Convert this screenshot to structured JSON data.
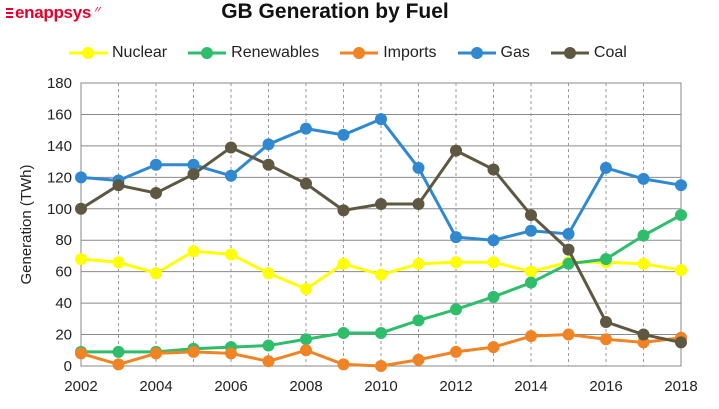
{
  "logo": {
    "text": "enappsys",
    "color": "#e4002b"
  },
  "chart_data": {
    "type": "line",
    "title": "GB Generation by Fuel",
    "xlabel": "",
    "ylabel": "Generation (TWh)",
    "ylim": [
      0,
      180
    ],
    "yticks": [
      0,
      20,
      40,
      60,
      80,
      100,
      120,
      140,
      160,
      180
    ],
    "xticks": [
      2002,
      2004,
      2006,
      2008,
      2010,
      2012,
      2014,
      2016,
      2018
    ],
    "grid": true,
    "legend_position": "top",
    "x": [
      2002,
      2003,
      2004,
      2005,
      2006,
      2007,
      2008,
      2009,
      2010,
      2011,
      2012,
      2013,
      2014,
      2015,
      2016,
      2017,
      2018
    ],
    "series": [
      {
        "name": "Nuclear",
        "color": "#ffff00",
        "values": [
          68,
          66,
          59,
          73,
          71,
          59,
          49,
          65,
          58,
          65,
          66,
          66,
          60,
          66,
          66,
          65,
          61
        ]
      },
      {
        "name": "Renewables",
        "color": "#2ebd6b",
        "values": [
          9,
          9,
          9,
          11,
          12,
          13,
          17,
          21,
          21,
          29,
          36,
          44,
          53,
          65,
          68,
          83,
          96
        ]
      },
      {
        "name": "Imports",
        "color": "#f08323",
        "values": [
          8,
          1,
          8,
          9,
          8,
          3,
          10,
          1,
          0,
          4,
          9,
          12,
          19,
          20,
          17,
          15,
          18
        ]
      },
      {
        "name": "Gas",
        "color": "#2f88d0",
        "values": [
          120,
          118,
          128,
          128,
          121,
          141,
          151,
          147,
          157,
          126,
          82,
          80,
          86,
          84,
          126,
          119,
          115
        ]
      },
      {
        "name": "Coal",
        "color": "#5e5741",
        "values": [
          100,
          115,
          110,
          122,
          139,
          128,
          116,
          99,
          103,
          103,
          137,
          125,
          96,
          74,
          28,
          20,
          15
        ]
      }
    ]
  }
}
